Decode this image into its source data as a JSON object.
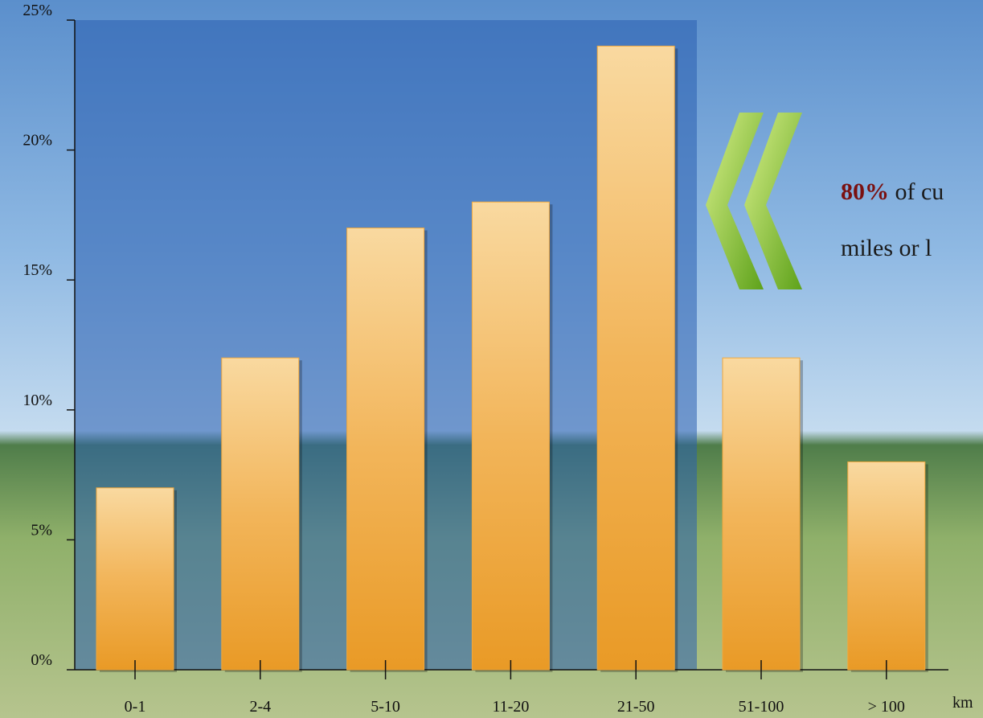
{
  "chart_data": {
    "type": "bar",
    "categories": [
      "0-1",
      "2-4",
      "5-10",
      "11-20",
      "21-50",
      "51-100",
      "> 100"
    ],
    "values": [
      7,
      12,
      17,
      18,
      24,
      12,
      8
    ],
    "color": "#f0a73c",
    "x_label": "km",
    "ylim": [
      0,
      25
    ],
    "yticks": [
      {
        "value": 0,
        "label": "0%"
      },
      {
        "value": 5,
        "label": "5%"
      },
      {
        "value": 10,
        "label": "10%"
      },
      {
        "value": 15,
        "label": "15%"
      },
      {
        "value": 20,
        "label": "20%"
      },
      {
        "value": 25,
        "label": "25%"
      }
    ],
    "annotation": {
      "highlight": "80%",
      "line1": "of cu",
      "line2": "miles or l"
    }
  }
}
